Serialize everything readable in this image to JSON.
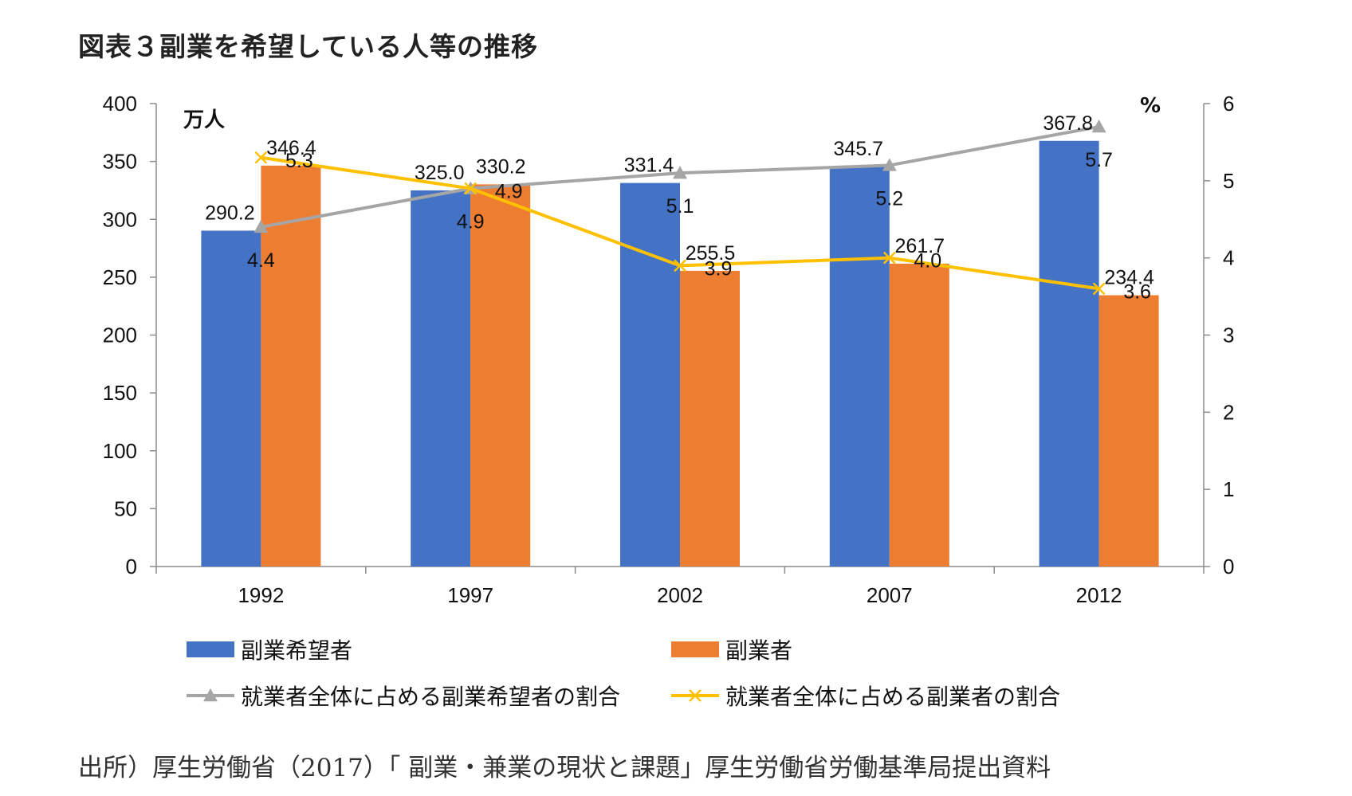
{
  "title": "図表３副業を希望している人等の推移",
  "source": "出所）厚生労働省（2017）「 副業・兼業の現状と課題」厚生労働省労働基準局提出資料",
  "chart_data": {
    "type": "bar",
    "categories": [
      "1992",
      "1997",
      "2002",
      "2007",
      "2012"
    ],
    "left_axis": {
      "unit": "万人",
      "ylim": [
        0,
        400
      ],
      "ticks": [
        0,
        50,
        100,
        150,
        200,
        250,
        300,
        350,
        400
      ]
    },
    "right_axis": {
      "unit": "%",
      "ylim": [
        0,
        6
      ],
      "ticks": [
        0,
        1,
        2,
        3,
        4,
        5,
        6
      ]
    },
    "series": [
      {
        "name": "副業希望者",
        "kind": "bar",
        "axis": "left",
        "color": "#4472C4",
        "values": [
          290.2,
          325.0,
          331.4,
          345.7,
          367.8
        ],
        "labels": [
          "290.2",
          "325.0",
          "331.4",
          "345.7",
          "367.8"
        ]
      },
      {
        "name": "副業者",
        "kind": "bar",
        "axis": "left",
        "color": "#ED7D31",
        "values": [
          346.4,
          330.2,
          255.5,
          261.7,
          234.4
        ],
        "labels": [
          "346.4",
          "330.2",
          "255.5",
          "261.7",
          "234.4"
        ]
      },
      {
        "name": "就業者全体に占める副業希望者の割合",
        "kind": "line",
        "axis": "right",
        "color": "#A5A5A5",
        "marker": "triangle",
        "values": [
          4.4,
          4.9,
          5.1,
          5.2,
          5.7
        ],
        "labels": [
          "4.4",
          "4.9",
          "5.1",
          "5.2",
          "5.7"
        ]
      },
      {
        "name": "就業者全体に占める副業者の割合",
        "kind": "line",
        "axis": "right",
        "color": "#FFC000",
        "marker": "x",
        "values": [
          5.3,
          4.9,
          3.9,
          4.0,
          3.6
        ],
        "labels": [
          "5.3",
          "4.9",
          "3.9",
          "4.0",
          "3.6"
        ]
      }
    ],
    "grid": false,
    "legend_position": "bottom"
  }
}
